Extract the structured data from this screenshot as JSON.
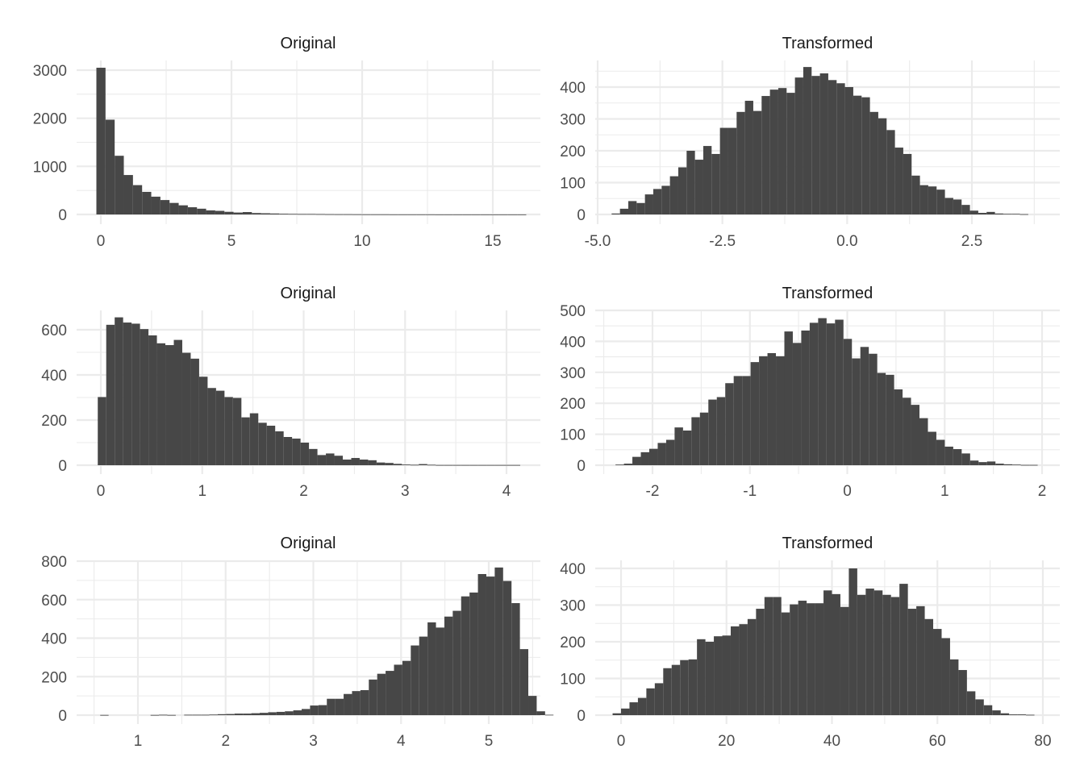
{
  "chart_data": [
    {
      "type": "bar",
      "panel": "row1-left",
      "title": "Original",
      "xlabel": "",
      "ylabel": "",
      "x_ticks": [
        "0",
        "5",
        "10",
        "15"
      ],
      "y_ticks": [
        "0",
        "1000",
        "2000",
        "3000"
      ],
      "xlim": [
        -0.9,
        16.7
      ],
      "ylim": [
        0,
        3200
      ],
      "bin_start": -0.17,
      "bin_width": 0.35,
      "values": [
        3050,
        1970,
        1220,
        820,
        610,
        470,
        370,
        300,
        240,
        190,
        150,
        120,
        85,
        75,
        55,
        40,
        50,
        30,
        25,
        20,
        15,
        12,
        10,
        10,
        8,
        6,
        5,
        5,
        4,
        3,
        3,
        3,
        2,
        2,
        2,
        2,
        2,
        1,
        1,
        1,
        1,
        1,
        1,
        1,
        1,
        1,
        1
      ]
    },
    {
      "type": "bar",
      "panel": "row1-right",
      "title": "Transformed",
      "xlabel": "",
      "ylabel": "",
      "x_ticks": [
        "-5.0",
        "-2.5",
        "0.0",
        "2.5"
      ],
      "y_ticks": [
        "0",
        "100",
        "200",
        "300",
        "400"
      ],
      "xlim": [
        -5.0,
        4.3
      ],
      "ylim": [
        0,
        480
      ],
      "bin_start": -4.72,
      "bin_width": 0.167,
      "values": [
        3,
        18,
        42,
        36,
        63,
        80,
        90,
        120,
        148,
        200,
        172,
        215,
        190,
        272,
        272,
        322,
        357,
        325,
        372,
        392,
        397,
        382,
        430,
        463,
        435,
        443,
        422,
        412,
        400,
        373,
        368,
        322,
        302,
        265,
        210,
        190,
        122,
        92,
        88,
        78,
        52,
        47,
        30,
        12,
        5,
        8,
        3,
        2,
        2,
        1
      ]
    },
    {
      "type": "bar",
      "panel": "row2-left",
      "title": "Original",
      "xlabel": "",
      "ylabel": "",
      "x_ticks": [
        "0",
        "1",
        "2",
        "3",
        "4"
      ],
      "y_ticks": [
        "0",
        "200",
        "400",
        "600"
      ],
      "xlim": [
        -0.23,
        4.35
      ],
      "ylim": [
        0,
        690
      ],
      "bin_start": -0.03,
      "bin_width": 0.0833,
      "values": [
        302,
        622,
        655,
        632,
        627,
        603,
        575,
        540,
        532,
        555,
        498,
        472,
        392,
        342,
        330,
        302,
        298,
        212,
        230,
        188,
        175,
        150,
        125,
        118,
        100,
        72,
        45,
        52,
        42,
        25,
        32,
        25,
        22,
        12,
        10,
        6,
        3,
        2,
        5,
        2,
        1,
        1,
        1,
        1,
        1,
        1,
        1,
        1,
        1,
        1
      ]
    },
    {
      "type": "bar",
      "panel": "row2-right",
      "title": "Transformed",
      "xlabel": "",
      "ylabel": "",
      "x_ticks": [
        "-2",
        "-1",
        "0",
        "1",
        "2"
      ],
      "y_ticks": [
        "0",
        "100",
        "200",
        "300",
        "400",
        "500"
      ],
      "xlim": [
        -2.6,
        2.2
      ],
      "ylim": [
        0,
        500
      ],
      "bin_start": -2.38,
      "bin_width": 0.0867,
      "values": [
        2,
        5,
        27,
        42,
        53,
        72,
        82,
        122,
        112,
        155,
        170,
        212,
        220,
        265,
        288,
        288,
        333,
        352,
        362,
        352,
        432,
        395,
        435,
        460,
        475,
        458,
        470,
        408,
        345,
        382,
        360,
        298,
        292,
        245,
        218,
        195,
        152,
        108,
        82,
        60,
        52,
        38,
        15,
        10,
        12,
        5,
        3,
        2,
        1,
        1
      ]
    },
    {
      "type": "bar",
      "panel": "row3-left",
      "title": "Original",
      "xlabel": "",
      "ylabel": "",
      "x_ticks": [
        "1",
        "2",
        "3",
        "4",
        "5"
      ],
      "y_ticks": [
        "0",
        "200",
        "400",
        "600",
        "800"
      ],
      "xlim": [
        0.3,
        5.6
      ],
      "ylim": [
        0,
        800
      ],
      "bin_start": 0.57,
      "bin_width": 0.0957,
      "values": [
        1,
        0,
        0,
        0,
        0,
        0,
        1,
        2,
        1,
        0,
        2,
        2,
        2,
        3,
        5,
        6,
        8,
        8,
        10,
        12,
        15,
        17,
        20,
        25,
        32,
        50,
        52,
        85,
        85,
        110,
        125,
        130,
        185,
        215,
        230,
        262,
        282,
        362,
        408,
        482,
        455,
        512,
        542,
        617,
        637,
        733,
        720,
        767,
        697,
        582,
        343,
        100,
        20,
        2
      ]
    },
    {
      "type": "bar",
      "panel": "row3-right",
      "title": "Transformed",
      "xlabel": "",
      "ylabel": "",
      "x_ticks": [
        "0",
        "20",
        "40",
        "60",
        "80"
      ],
      "y_ticks": [
        "0",
        "100",
        "200",
        "300",
        "400"
      ],
      "xlim": [
        -4.6,
        83.5
      ],
      "ylim": [
        0,
        410
      ],
      "bin_start": -1.6,
      "bin_width": 1.6,
      "values": [
        5,
        18,
        35,
        47,
        73,
        87,
        128,
        137,
        150,
        152,
        207,
        200,
        215,
        217,
        242,
        248,
        262,
        290,
        322,
        322,
        280,
        302,
        312,
        305,
        305,
        340,
        330,
        295,
        400,
        328,
        345,
        340,
        328,
        322,
        358,
        290,
        297,
        262,
        235,
        210,
        152,
        123,
        65,
        43,
        27,
        13,
        5,
        2,
        2,
        1
      ]
    }
  ]
}
